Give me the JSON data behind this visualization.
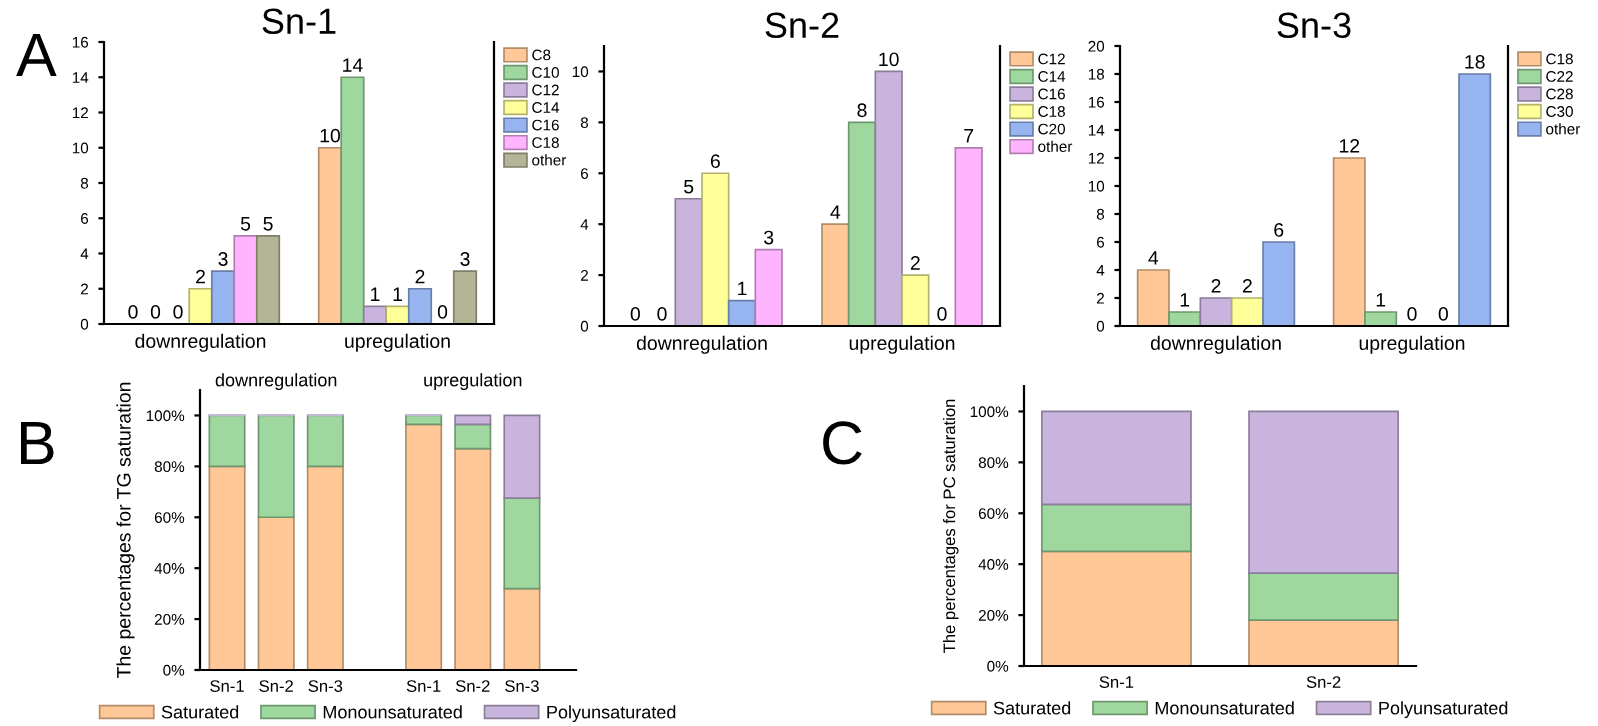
{
  "chart_data": [
    {
      "type": "bar",
      "title": "Sn-1",
      "categories": [
        "downregulation",
        "upregulation"
      ],
      "data_labels": true,
      "legend": "right",
      "ylim": [
        0,
        16
      ],
      "yticks": [
        0,
        2,
        4,
        6,
        8,
        10,
        12,
        14,
        16
      ],
      "annotations": [
        "A"
      ],
      "series": [
        {
          "name": "C8",
          "color": "#ffc896",
          "values": [
            0,
            10
          ]
        },
        {
          "name": "C10",
          "color": "#9ed89e",
          "values": [
            0,
            14
          ]
        },
        {
          "name": "C12",
          "color": "#c8b4dc",
          "values": [
            0,
            1
          ]
        },
        {
          "name": "C14",
          "color": "#ffff99",
          "values": [
            2,
            1
          ]
        },
        {
          "name": "C16",
          "color": "#96b4f0",
          "values": [
            3,
            2
          ]
        },
        {
          "name": "C18",
          "color": "#ffb4ff",
          "values": [
            5,
            0
          ]
        },
        {
          "name": "other",
          "color": "#b4b496",
          "values": [
            5,
            3
          ]
        }
      ]
    },
    {
      "type": "bar",
      "title": "Sn-2",
      "categories": [
        "downregulation",
        "upregulation"
      ],
      "data_labels": true,
      "legend": "right",
      "ylim": [
        0,
        11
      ],
      "yticks": [
        0,
        2,
        4,
        6,
        8,
        10
      ],
      "series": [
        {
          "name": "C12",
          "color": "#ffc896",
          "values": [
            0,
            4
          ]
        },
        {
          "name": "C14",
          "color": "#9ed89e",
          "values": [
            0,
            8
          ]
        },
        {
          "name": "C16",
          "color": "#c8b4dc",
          "values": [
            5,
            10
          ]
        },
        {
          "name": "C18",
          "color": "#ffff99",
          "values": [
            6,
            2
          ]
        },
        {
          "name": "C20",
          "color": "#96b4f0",
          "values": [
            1,
            0
          ]
        },
        {
          "name": "other",
          "color": "#ffb4ff",
          "values": [
            3,
            7
          ]
        }
      ]
    },
    {
      "type": "bar",
      "title": "Sn-3",
      "categories": [
        "downregulation",
        "upregulation"
      ],
      "data_labels": true,
      "legend": "right",
      "ylim": [
        0,
        20
      ],
      "yticks": [
        0,
        2,
        4,
        6,
        8,
        10,
        12,
        14,
        16,
        18,
        20
      ],
      "series": [
        {
          "name": "C18",
          "color": "#ffc896",
          "values": [
            4,
            12
          ]
        },
        {
          "name": "C22",
          "color": "#9ed89e",
          "values": [
            1,
            1
          ]
        },
        {
          "name": "C28",
          "color": "#c8b4dc",
          "values": [
            2,
            0
          ]
        },
        {
          "name": "C30",
          "color": "#ffff99",
          "values": [
            2,
            0
          ]
        },
        {
          "name": "other",
          "color": "#96b4f0",
          "values": [
            6,
            18
          ]
        }
      ]
    },
    {
      "type": "bar",
      "stacked": true,
      "categories": [
        "Sn-1",
        "Sn-2",
        "Sn-3",
        null,
        "Sn-1",
        "Sn-2",
        "Sn-3"
      ],
      "ylabel": "The percentages for TG saturation",
      "legend": "bottom",
      "ylim": [
        0,
        110
      ],
      "yticks": [
        {
          "value": 0,
          "label": "0%"
        },
        {
          "value": 20,
          "label": "20%"
        },
        {
          "value": 40,
          "label": "40%"
        },
        {
          "value": 60,
          "label": "60%"
        },
        {
          "value": 80,
          "label": "80%"
        },
        {
          "value": 100,
          "label": "100%"
        }
      ],
      "annotations": [
        "B",
        "downregulation",
        "upregulation"
      ],
      "series": [
        {
          "name": "Saturated",
          "color": "#ffc896",
          "values": [
            80,
            60,
            80,
            null,
            96.5,
            87,
            32
          ]
        },
        {
          "name": "Monounsaturated",
          "color": "#9ed89e",
          "values": [
            20,
            40,
            20,
            null,
            3.5,
            9.5,
            35.5
          ]
        },
        {
          "name": "Polyunsaturated",
          "color": "#c8b4dc",
          "values": [
            0,
            0,
            0,
            null,
            0,
            3.5,
            32.5
          ]
        }
      ]
    },
    {
      "type": "bar",
      "stacked": true,
      "categories": [
        "Sn-1",
        "Sn-2"
      ],
      "ylabel": "The percentages for PC saturation",
      "legend": "bottom",
      "ylim": [
        0,
        110
      ],
      "yticks": [
        {
          "value": 0,
          "label": "0%"
        },
        {
          "value": 20,
          "label": "20%"
        },
        {
          "value": 40,
          "label": "40%"
        },
        {
          "value": 60,
          "label": "60%"
        },
        {
          "value": 80,
          "label": "80%"
        },
        {
          "value": 100,
          "label": "100%"
        }
      ],
      "annotations": [
        "C"
      ],
      "series": [
        {
          "name": "Saturated",
          "color": "#ffc896",
          "values": [
            45,
            18
          ]
        },
        {
          "name": "Monounsaturated",
          "color": "#9ed89e",
          "values": [
            18.5,
            18.5
          ]
        },
        {
          "name": "Polyunsaturated",
          "color": "#c8b4dc",
          "values": [
            36.5,
            63.5
          ]
        }
      ]
    }
  ]
}
